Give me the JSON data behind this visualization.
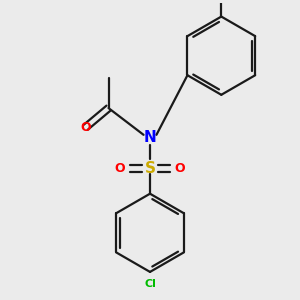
{
  "bg_color": "#ebebeb",
  "bond_color": "#1a1a1a",
  "N_color": "#0000ff",
  "O_color": "#ff0000",
  "S_color": "#ccaa00",
  "Cl_color": "#00bb00",
  "lw": 1.6,
  "dbo": 0.09,
  "figsize": [
    3.0,
    3.0
  ],
  "dpi": 100,
  "xlim": [
    -2.8,
    2.8
  ],
  "ylim": [
    -3.2,
    3.2
  ]
}
